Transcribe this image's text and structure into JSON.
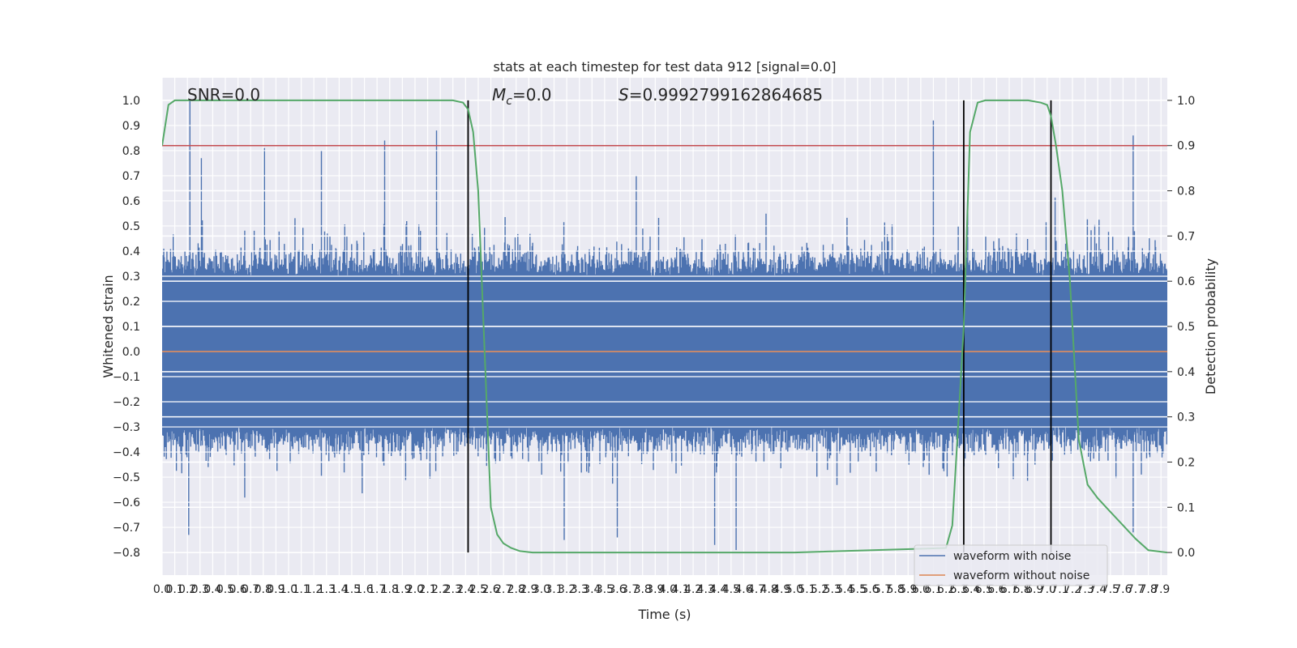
{
  "chart_data": {
    "type": "line",
    "title": "stats at each timestep for test data 912 [signal=0.0]",
    "xlabel": "Time (s)",
    "ylabel": "Whitened strain",
    "y2label": "Detection probability",
    "annotations": {
      "snr": "SNR=0.0",
      "mc_symbol": "M",
      "mc_sub": "c",
      "mc_value": "=0.0",
      "s_symbol": "S",
      "s_value": "=0.9992799162864685"
    },
    "legend": {
      "placement": "lower-right",
      "entries": [
        {
          "label": "waveform with noise",
          "color": "#4c72b0"
        },
        {
          "label": "waveform without noise",
          "color": "#dd8452"
        }
      ]
    },
    "colors": {
      "background": "#eaeaf2",
      "grid": "#ffffff",
      "noise": "#4c72b0",
      "clean": "#dd8452",
      "probability": "#55a868",
      "threshold": "#c44e52",
      "marker": "#000000"
    },
    "xlim": [
      0.0,
      7.95
    ],
    "ylim": [
      -0.89,
      1.09
    ],
    "y2lim": [
      -0.05,
      1.05
    ],
    "x_ticks": [
      "0.0",
      "0.1",
      "0.2",
      "0.3",
      "0.4",
      "0.5",
      "0.6",
      "0.7",
      "0.8",
      "0.9",
      "1.0",
      "1.1",
      "1.2",
      "1.3",
      "1.4",
      "1.5",
      "1.6",
      "1.7",
      "1.8",
      "1.9",
      "2.0",
      "2.1",
      "2.2",
      "2.3",
      "2.4",
      "2.5",
      "2.6",
      "2.7",
      "2.8",
      "2.9",
      "3.0",
      "3.1",
      "3.2",
      "3.3",
      "3.4",
      "3.5",
      "3.6",
      "3.7",
      "3.8",
      "3.9",
      "4.0",
      "4.1",
      "4.2",
      "4.3",
      "4.4",
      "4.5",
      "4.6",
      "4.7",
      "4.8",
      "4.9",
      "5.0",
      "5.1",
      "5.2",
      "5.3",
      "5.4",
      "5.5",
      "5.6",
      "5.7",
      "5.8",
      "5.9",
      "6.0",
      "6.1",
      "6.2",
      "6.3",
      "6.4",
      "6.5",
      "6.6",
      "6.7",
      "6.8",
      "6.9",
      "7.0",
      "7.1",
      "7.2",
      "7.3",
      "7.4",
      "7.5",
      "7.6",
      "7.7",
      "7.8",
      "7.9"
    ],
    "y_ticks": [
      "-0.8",
      "-0.7",
      "-0.6",
      "-0.5",
      "-0.4",
      "-0.3",
      "-0.2",
      "-0.1",
      "0.0",
      "0.1",
      "0.2",
      "0.3",
      "0.4",
      "0.5",
      "0.6",
      "0.7",
      "0.8",
      "0.9",
      "1.0"
    ],
    "y2_ticks": [
      "0.0",
      "0.1",
      "0.2",
      "0.3",
      "0.4",
      "0.5",
      "0.6",
      "0.7",
      "0.8",
      "0.9",
      "1.0"
    ],
    "threshold": 0.9,
    "markers_x": [
      2.42,
      6.34,
      7.03
    ],
    "clean_waveform": 0.0,
    "series": [
      {
        "name": "waveform with noise",
        "axis": "left",
        "representation": "dense noise band",
        "envelope_min": -0.79,
        "envelope_max": 1.0,
        "peaks": [
          {
            "x": 0.22,
            "y": 1.0
          },
          {
            "x": 0.31,
            "y": 0.77
          },
          {
            "x": 0.81,
            "y": 0.81
          },
          {
            "x": 1.26,
            "y": 0.8
          },
          {
            "x": 1.76,
            "y": 0.84
          },
          {
            "x": 2.17,
            "y": 0.88
          },
          {
            "x": 6.1,
            "y": 0.92
          },
          {
            "x": 7.68,
            "y": 0.86
          },
          {
            "x": 3.75,
            "y": 0.7
          }
        ],
        "troughs": [
          {
            "x": 0.21,
            "y": -0.73
          },
          {
            "x": 3.18,
            "y": -0.75
          },
          {
            "x": 3.6,
            "y": -0.74
          },
          {
            "x": 4.37,
            "y": -0.77
          },
          {
            "x": 4.54,
            "y": -0.79
          },
          {
            "x": 7.68,
            "y": -0.72
          }
        ]
      },
      {
        "name": "detection probability",
        "axis": "right",
        "x": [
          0.0,
          0.05,
          0.1,
          0.15,
          0.3,
          1.0,
          2.0,
          2.3,
          2.38,
          2.42,
          2.46,
          2.5,
          2.55,
          2.6,
          2.65,
          2.7,
          2.76,
          2.83,
          2.93,
          3.1,
          3.5,
          5.0,
          6.2,
          6.25,
          6.3,
          6.34,
          6.39,
          6.45,
          6.51,
          6.58,
          6.7,
          6.85,
          6.95,
          7.0,
          7.03,
          7.07,
          7.12,
          7.18,
          7.25,
          7.32,
          7.4,
          7.5,
          7.6,
          7.7,
          7.8,
          7.95
        ],
        "y": [
          0.9,
          0.99,
          1.0,
          1.0,
          1.0,
          1.0,
          1.0,
          1.0,
          0.995,
          0.98,
          0.93,
          0.8,
          0.45,
          0.1,
          0.04,
          0.02,
          0.01,
          0.003,
          0.0,
          0.0,
          0.0,
          0.0,
          0.01,
          0.06,
          0.3,
          0.5,
          0.93,
          0.995,
          1.0,
          1.0,
          1.0,
          1.0,
          0.995,
          0.99,
          0.965,
          0.9,
          0.8,
          0.6,
          0.25,
          0.15,
          0.12,
          0.09,
          0.06,
          0.03,
          0.005,
          0.0
        ]
      }
    ]
  }
}
